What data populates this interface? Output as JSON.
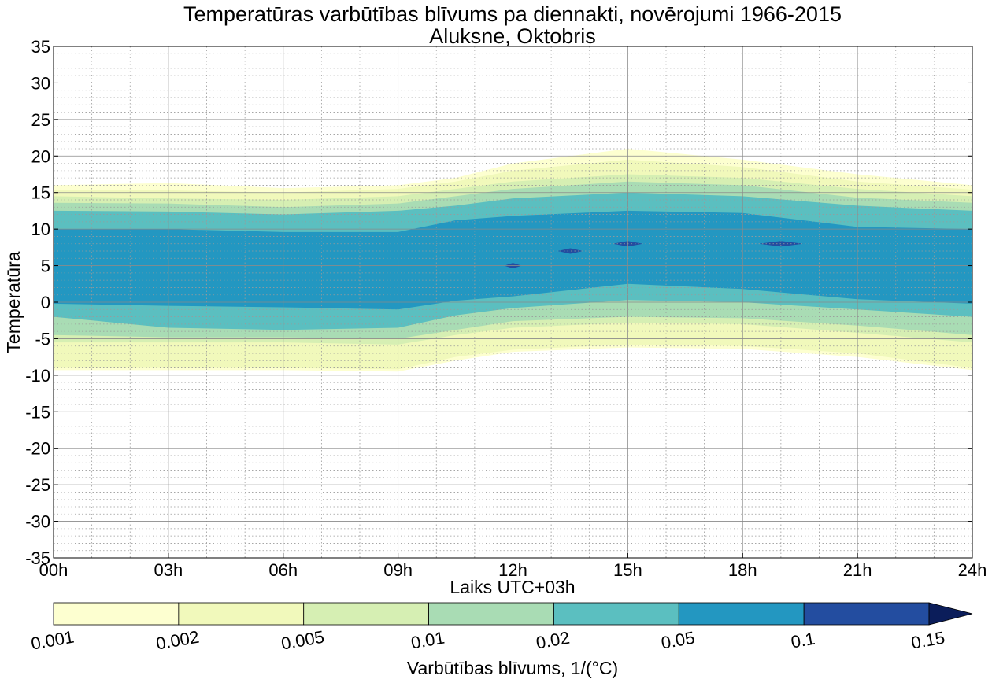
{
  "chart_data": {
    "type": "contour",
    "title": "Temperatūras varbūtības blīvums pa diennakti, novērojumi 1966-2015",
    "subtitle": "Aluksne, Oktobris",
    "xlabel": "Laiks UTC+03h",
    "ylabel": "Temperatūra",
    "xlim": [
      0,
      24
    ],
    "ylim": [
      -35,
      35
    ],
    "x_ticks": [
      0,
      3,
      6,
      9,
      12,
      15,
      18,
      21,
      24
    ],
    "x_tick_labels": [
      "00h",
      "03h",
      "06h",
      "09h",
      "12h",
      "15h",
      "18h",
      "21h",
      "24h"
    ],
    "y_ticks": [
      35,
      30,
      25,
      20,
      15,
      10,
      5,
      0,
      -5,
      -10,
      -15,
      -20,
      -25,
      -30,
      -35
    ],
    "y_tick_labels": [
      "35",
      "30",
      "25",
      "20",
      "15",
      "10",
      "5",
      "0",
      "-5",
      "-10",
      "-15",
      "-20",
      "-25",
      "-30",
      "-35"
    ],
    "grid": "major solid, minor dotted",
    "colorbar": {
      "label": "Varbūtības blīvums, 1/($^\\circ$C)",
      "levels": [
        0.001,
        0.002,
        0.005,
        0.01,
        0.02,
        0.05,
        0.1,
        0.15
      ],
      "tick_labels": [
        "0.001",
        "0.002",
        "0.005",
        "0.01",
        "0.02",
        "0.05",
        "0.1",
        "0.15"
      ],
      "colors": [
        "#fdffd0",
        "#f1f9bb",
        "#d6efb3",
        "#a9dcb4",
        "#5bbfc0",
        "#2397c1",
        "#234da0",
        "#0b1d5a"
      ],
      "extend": "max"
    },
    "x_hours": [
      0,
      3,
      6,
      9,
      10.5,
      12,
      15,
      18,
      21,
      24
    ],
    "bands": [
      {
        "level": 0.001,
        "upper": [
          16,
          16.3,
          15.6,
          16,
          17,
          19,
          21,
          19.5,
          17.5,
          16
        ],
        "lower": [
          -9.3,
          -9.3,
          -9.3,
          -9.5,
          -8,
          -6.8,
          -6.2,
          -6.4,
          -7.5,
          -9.3
        ]
      },
      {
        "level": 0.002,
        "upper": [
          15.4,
          15.3,
          15,
          15.5,
          16.5,
          18,
          19.5,
          18.5,
          16.5,
          15.4
        ],
        "lower": [
          -9,
          -9,
          -9,
          -9.2,
          -7.5,
          -6.5,
          -5.8,
          -6,
          -7,
          -9
        ]
      },
      {
        "level": 0.005,
        "upper": [
          14.5,
          14.2,
          14,
          14.5,
          15.5,
          16.5,
          17.5,
          17,
          15.5,
          14.5
        ],
        "lower": [
          -5.5,
          -5.5,
          -5.5,
          -5.8,
          -4.5,
          -3.5,
          -2.8,
          -3,
          -4.2,
          -5.5
        ]
      },
      {
        "level": 0.01,
        "upper": [
          13.6,
          13.5,
          13,
          13.5,
          14.5,
          15.5,
          16.5,
          16,
          14.3,
          13.6
        ],
        "lower": [
          -4.5,
          -4.8,
          -4.8,
          -5,
          -3.8,
          -2.6,
          -2,
          -2.2,
          -3.2,
          -4.5
        ]
      },
      {
        "level": 0.02,
        "upper": [
          12.5,
          12.4,
          12,
          12.5,
          13.2,
          14.2,
          15,
          14.5,
          13.2,
          12.5
        ],
        "lower": [
          -2,
          -3.5,
          -3.8,
          -3.5,
          -1.8,
          -0.8,
          0.3,
          0,
          -1,
          -2
        ]
      },
      {
        "level": 0.05,
        "upper": [
          10,
          10,
          9.6,
          9.6,
          11.2,
          11.8,
          12.5,
          12.2,
          10.3,
          10
        ],
        "lower": [
          -0.2,
          -0.5,
          -0.7,
          -1,
          0.2,
          0.8,
          2.5,
          1.8,
          0.4,
          -0.2
        ]
      }
    ],
    "peaks_above_0.1": [
      {
        "x": 12,
        "y": 5
      },
      {
        "x": 13.5,
        "y": 7
      },
      {
        "x": 15,
        "y": 8
      },
      {
        "x": 19,
        "y": 8
      }
    ]
  }
}
